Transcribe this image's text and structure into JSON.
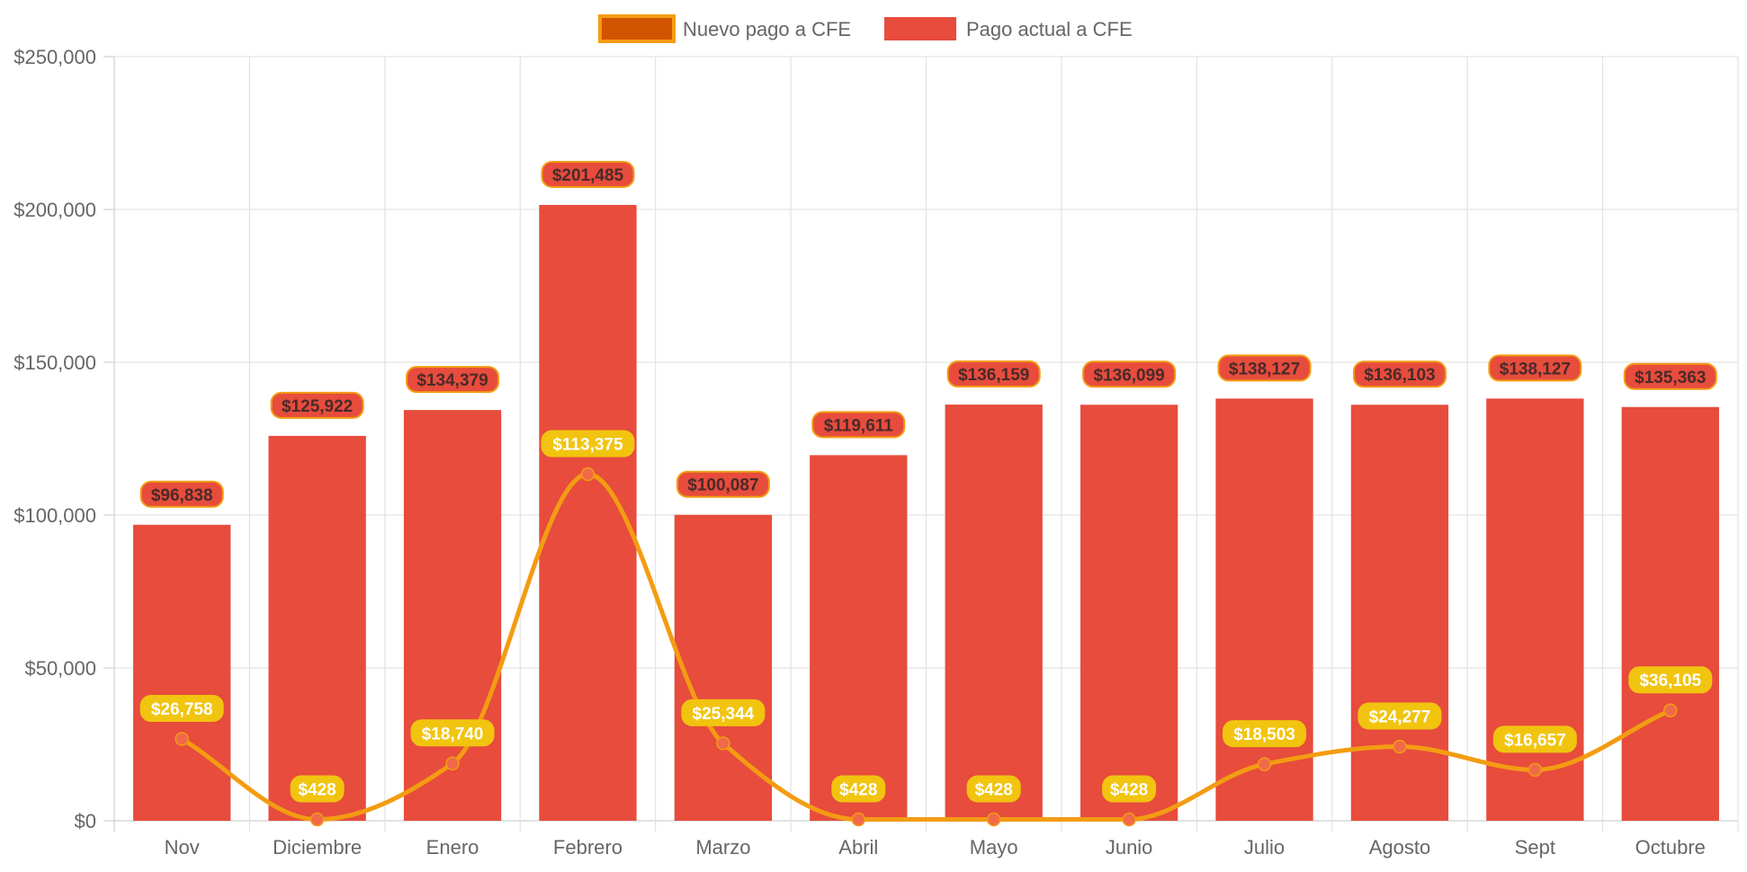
{
  "chart_data": {
    "type": "bar",
    "categories": [
      "Nov",
      "Diciembre",
      "Enero",
      "Febrero",
      "Marzo",
      "Abril",
      "Mayo",
      "Junio",
      "Julio",
      "Agosto",
      "Sept",
      "Octubre"
    ],
    "ylim": [
      0,
      250000
    ],
    "yticks": [
      0,
      50000,
      100000,
      150000,
      200000,
      250000
    ],
    "ytick_labels": [
      "$0",
      "$50,000",
      "$100,000",
      "$150,000",
      "$200,000",
      "$250,000"
    ],
    "grid": true,
    "legend_position": "top-center",
    "series": [
      {
        "name": "Nuevo pago a CFE",
        "type": "line",
        "color": "#f39c12",
        "point_color": "#f06a4a",
        "legend_fill": "#d35400",
        "label_bg": "#f1c40f",
        "values": [
          26758,
          428,
          18740,
          113375,
          25344,
          428,
          428,
          428,
          18503,
          24277,
          16657,
          36105
        ],
        "labels": [
          "$26,758",
          "$428",
          "$18,740",
          "$113,375",
          "$25,344",
          "$428",
          "$428",
          "$428",
          "$18,503",
          "$24,277",
          "$16,657",
          "$36,105"
        ]
      },
      {
        "name": "Pago actual a CFE",
        "type": "bar",
        "color": "#e74c3c",
        "label_border": "#f39c12",
        "values": [
          96838,
          125922,
          134379,
          201485,
          100087,
          119611,
          136159,
          136099,
          138127,
          136103,
          138127,
          135363
        ],
        "labels": [
          "$96,838",
          "$125,922",
          "$134,379",
          "$201,485",
          "$100,087",
          "$119,611",
          "$136,159",
          "$136,099",
          "$138,127",
          "$136,103",
          "$138,127",
          "$135,363"
        ]
      }
    ]
  }
}
